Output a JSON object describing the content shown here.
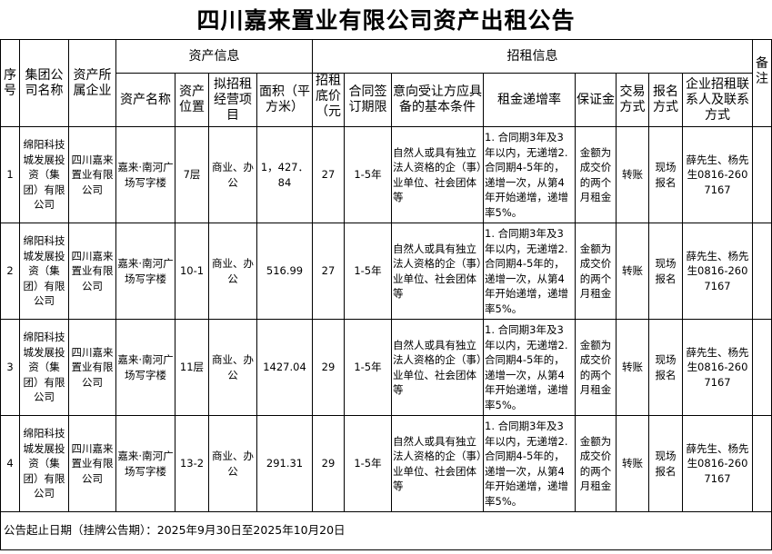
{
  "title": "四川嘉来置业有限公司资产出租公告",
  "headers": {
    "seq": "序号",
    "group": "集团公司名称",
    "owner": "资产所属企业",
    "asset_info": "资产信息",
    "lease_info": "招租信息",
    "remark": "备注",
    "asset_name": "资产名称",
    "location": "资产位置",
    "business": "拟招租经营项目",
    "area": "面积（平方米）",
    "price": "招租底价（元",
    "term": "合同签订期限",
    "conditions": "意向受让方应具备的基本条件",
    "increase": "租金递增率",
    "deposit": "保证金",
    "trade": "交易方式",
    "signup": "报名方式",
    "contact": "企业招租联系人及联系方式"
  },
  "rows": [
    {
      "seq": "1",
      "group": "绵阳科技城发展投资（集团）有限公司",
      "owner": "四川嘉来置业有限公司",
      "asset_name": "嘉来·南河广场写字楼",
      "location": "7层",
      "business": "商业、办公",
      "area": "1，427．84",
      "price": "27",
      "term": "1-5年",
      "conditions": "自然人或具有独立法人资格的企（事）业单位、社会团体等",
      "increase": "1. 合同期3年及3年以内，无递增2. 合同期4-5年的，递增一次，从第4年开始递增，递增率5%。",
      "deposit": "金额为成交价的两个月租金",
      "trade": "转账",
      "signup": "现场报名",
      "contact": "薛先生、杨先生0816-2607167",
      "remark": ""
    },
    {
      "seq": "2",
      "group": "绵阳科技城发展投资（集团）有限公司",
      "owner": "四川嘉来置业有限公司",
      "asset_name": "嘉来·南河广场写字楼",
      "location": "10-1",
      "business": "商业、办公",
      "area": "516.99",
      "price": "27",
      "term": "1-5年",
      "conditions": "自然人或具有独立法人资格的企（事）业单位、社会团体等",
      "increase": "1. 合同期3年及3年以内，无递增2. 合同期4-5年的，递增一次，从第4年开始递增，递增率5%。",
      "deposit": "金额为成交价的两个月租金",
      "trade": "转账",
      "signup": "现场报名",
      "contact": "薛先生、杨先生0816-2607167",
      "remark": ""
    },
    {
      "seq": "3",
      "group": "绵阳科技城发展投资（集团）有限公司",
      "owner": "四川嘉来置业有限公司",
      "asset_name": "嘉来·南河广场写字楼",
      "location": "11层",
      "business": "商业、办公",
      "area": "1427.04",
      "price": "29",
      "term": "1-5年",
      "conditions": "自然人或具有独立法人资格的企（事）业单位、社会团体等",
      "increase": "1. 合同期3年及3年以内，无递增2. 合同期4-5年的，递增一次，从第4年开始递增，递增率5%。",
      "deposit": "金额为成交价的两个月租金",
      "trade": "转账",
      "signup": "现场报名",
      "contact": "薛先生、杨先生0816-2607167",
      "remark": ""
    },
    {
      "seq": "4",
      "group": "绵阳科技城发展投资（集团）有限公司",
      "owner": "四川嘉来置业有限公司",
      "asset_name": "嘉来·南河广场写字楼",
      "location": "13-2",
      "business": "商业、办公",
      "area": "291.31",
      "price": "29",
      "term": "1-5年",
      "conditions": "自然人或具有独立法人资格的企（事）业单位、社会团体等",
      "increase": "1. 合同期3年及3年以内，无递增2. 合同期4-5年的，递增一次，从第4年开始递增，递增率5%。",
      "deposit": "金额为成交价的两个月租金",
      "trade": "转账",
      "signup": "现场报名",
      "contact": "薛先生、杨先生0816-2607167",
      "remark": ""
    }
  ],
  "footer": "公告起止日期（挂牌公告期）：2025年9月30日至2025年10月20日"
}
